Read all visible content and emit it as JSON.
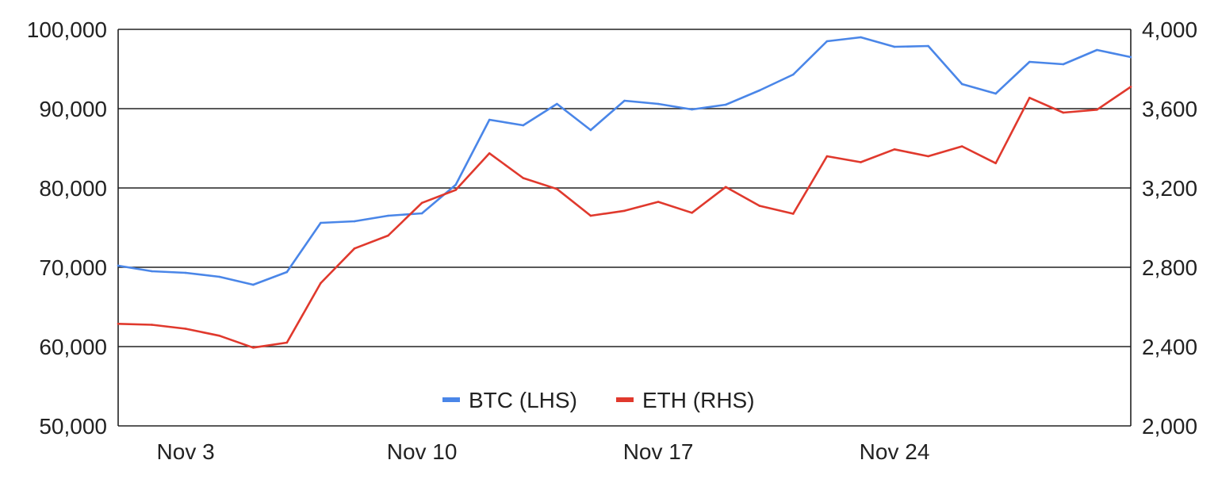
{
  "chart_data": {
    "type": "line",
    "title": "",
    "xlabel": "",
    "ylabel": "",
    "y2label": "",
    "x_tick_labels": [
      {
        "label": "Nov 3",
        "day": 3
      },
      {
        "label": "Nov 10",
        "day": 10
      },
      {
        "label": "Nov 17",
        "day": 17
      },
      {
        "label": "Nov 24",
        "day": 24
      }
    ],
    "x_range": [
      "Nov 1",
      "Nov 30"
    ],
    "ylim_left": [
      50000,
      100000
    ],
    "ylim_right": [
      2000,
      4000
    ],
    "left_ticks": [
      {
        "label": "50,000",
        "value": 50000
      },
      {
        "label": "60,000",
        "value": 60000
      },
      {
        "label": "70,000",
        "value": 70000
      },
      {
        "label": "80,000",
        "value": 80000
      },
      {
        "label": "90,000",
        "value": 90000
      },
      {
        "label": "100,000",
        "value": 100000
      }
    ],
    "right_ticks": [
      {
        "label": "2,000",
        "value": 2000
      },
      {
        "label": "2,400",
        "value": 2400
      },
      {
        "label": "2,800",
        "value": 2800
      },
      {
        "label": "3,200",
        "value": 3200
      },
      {
        "label": "3,600",
        "value": 3600
      },
      {
        "label": "4,000",
        "value": 4000
      }
    ],
    "grid": "horizontal",
    "legend_position": "bottom-center",
    "x": [
      "Nov 1",
      "Nov 2",
      "Nov 3",
      "Nov 4",
      "Nov 5",
      "Nov 6",
      "Nov 7",
      "Nov 8",
      "Nov 9",
      "Nov 10",
      "Nov 11",
      "Nov 12",
      "Nov 13",
      "Nov 14",
      "Nov 15",
      "Nov 16",
      "Nov 17",
      "Nov 18",
      "Nov 19",
      "Nov 20",
      "Nov 21",
      "Nov 22",
      "Nov 23",
      "Nov 24",
      "Nov 25",
      "Nov 26",
      "Nov 27",
      "Nov 28",
      "Nov 29",
      "Nov 30",
      "Dec 1"
    ],
    "series": [
      {
        "name": "BTC (LHS)",
        "axis": "left",
        "color": "#4a86e8",
        "values": [
          70200,
          69500,
          69300,
          68800,
          67800,
          69400,
          75600,
          75800,
          76500,
          76800,
          80400,
          88600,
          87900,
          90600,
          87300,
          91000,
          90600,
          89900,
          90500,
          92300,
          94300,
          98500,
          99000,
          97800,
          97900,
          93100,
          91900,
          95900,
          95600,
          97400,
          96500
        ]
      },
      {
        "name": "ETH (RHS)",
        "axis": "right",
        "color": "#e0392d",
        "values": [
          2515,
          2510,
          2490,
          2455,
          2395,
          2420,
          2720,
          2895,
          2960,
          3125,
          3190,
          3375,
          3250,
          3195,
          3060,
          3085,
          3130,
          3075,
          3205,
          3110,
          3070,
          3360,
          3330,
          3395,
          3360,
          3410,
          3325,
          3655,
          3580,
          3595,
          3710
        ]
      }
    ]
  }
}
